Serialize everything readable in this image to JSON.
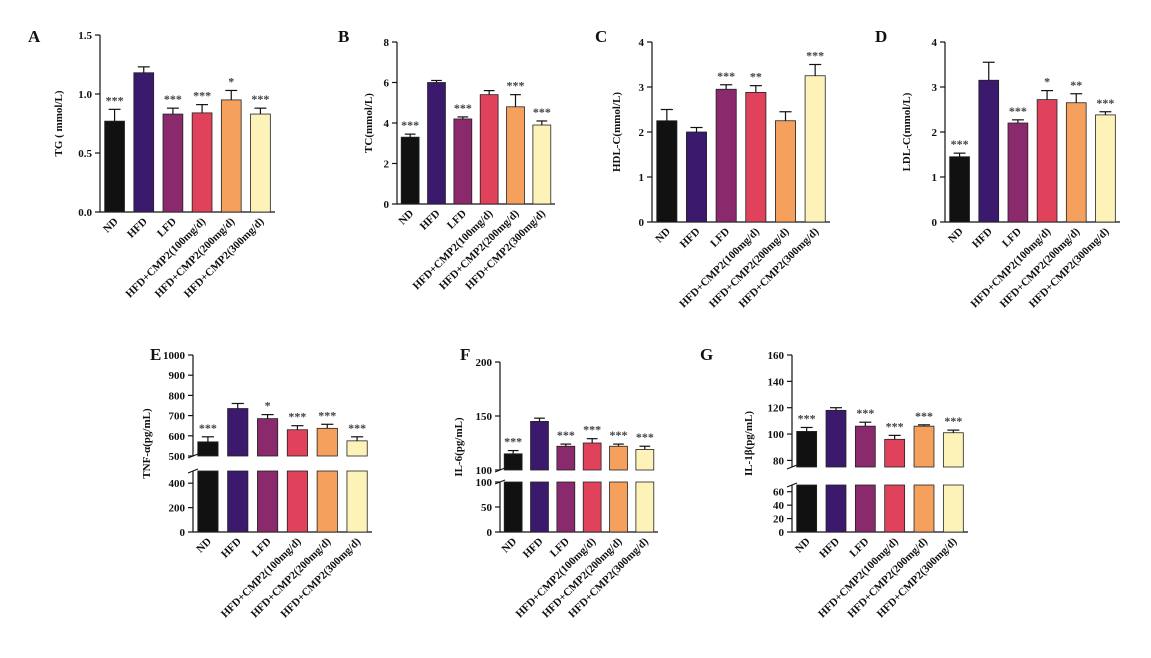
{
  "chart_data": [
    {
      "type": "bar",
      "panel_label": "A",
      "y_label": "TG ( mmol/L)",
      "categories": [
        "ND",
        "HFD",
        "LFD",
        "HFD+CMP2(100mg/d)",
        "HFD+CMP2(200mg/d)",
        "HFD+CMP2(300mg/d)"
      ],
      "colors": [
        "#111111",
        "#3b1a6e",
        "#8a2a6c",
        "#e0425c",
        "#f6a05e",
        "#fdf3b8"
      ],
      "values": [
        0.77,
        1.18,
        0.83,
        0.84,
        0.95,
        0.83
      ],
      "errors": [
        0.1,
        0.05,
        0.05,
        0.07,
        0.08,
        0.05
      ],
      "annotations": [
        "***",
        null,
        "***",
        "***",
        "*",
        "***"
      ],
      "ylim": [
        0,
        1.5
      ],
      "yticks": [
        {
          "value": 0,
          "label": "0.0"
        },
        0.5,
        {
          "value": 1,
          "label": "1.0"
        },
        1.5
      ]
    },
    {
      "type": "bar",
      "panel_label": "B",
      "y_label": "TC(mmol/L)",
      "categories": [
        "ND",
        "HFD",
        "LFD",
        "HFD+CMP2(100mg/d)",
        "HFD+CMP2(200mg/d)",
        "HFD+CMP2(300mg/d)"
      ],
      "colors": [
        "#111111",
        "#3b1a6e",
        "#8a2a6c",
        "#e0425c",
        "#f6a05e",
        "#fdf3b8"
      ],
      "values": [
        3.3,
        6.0,
        4.2,
        5.4,
        4.8,
        3.9
      ],
      "errors": [
        0.15,
        0.1,
        0.1,
        0.2,
        0.6,
        0.2
      ],
      "annotations": [
        "***",
        null,
        "***",
        null,
        "***",
        "***"
      ],
      "ylim": [
        0,
        8
      ],
      "yticks": [
        0,
        2,
        4,
        6,
        8
      ]
    },
    {
      "type": "bar",
      "panel_label": "C",
      "y_label": "HDL-C(mmol/L)",
      "categories": [
        "ND",
        "HFD",
        "LFD",
        "HFD+CMP2(100mg/d)",
        "HFD+CMP2(200mg/d)",
        "HFD+CMP2(300mg/d)"
      ],
      "colors": [
        "#111111",
        "#3b1a6e",
        "#8a2a6c",
        "#e0425c",
        "#f6a05e",
        "#fdf3b8"
      ],
      "values": [
        2.25,
        2.0,
        2.95,
        2.88,
        2.25,
        3.25
      ],
      "errors": [
        0.25,
        0.1,
        0.1,
        0.15,
        0.2,
        0.25
      ],
      "annotations": [
        null,
        null,
        "***",
        "**",
        null,
        "***"
      ],
      "ylim": [
        0,
        4
      ],
      "yticks": [
        0,
        1,
        2,
        3,
        4
      ]
    },
    {
      "type": "bar",
      "panel_label": "D",
      "y_label": "LDL-C(mmol/L)",
      "categories": [
        "ND",
        "HFD",
        "LFD",
        "HFD+CMP2(100mg/d)",
        "HFD+CMP2(200mg/d)",
        "HFD+CMP2(300mg/d)"
      ],
      "colors": [
        "#111111",
        "#3b1a6e",
        "#8a2a6c",
        "#e0425c",
        "#f6a05e",
        "#fdf3b8"
      ],
      "values": [
        1.45,
        3.15,
        2.2,
        2.72,
        2.65,
        2.38
      ],
      "errors": [
        0.08,
        0.4,
        0.07,
        0.2,
        0.2,
        0.07
      ],
      "annotations": [
        "***",
        null,
        "***",
        "*",
        "**",
        "***"
      ],
      "ylim": [
        0,
        4
      ],
      "yticks": [
        0,
        1,
        2,
        3,
        4
      ]
    },
    {
      "type": "bar",
      "panel_label": "E",
      "y_label": "TNF-α(pg/mL)",
      "categories": [
        "ND",
        "HFD",
        "LFD",
        "HFD+CMP2(100mg/d)",
        "HFD+CMP2(200mg/d)",
        "HFD+CMP2(300mg/d)"
      ],
      "colors": [
        "#111111",
        "#3b1a6e",
        "#8a2a6c",
        "#e0425c",
        "#f6a05e",
        "#fdf3b8"
      ],
      "values": [
        570,
        735,
        685,
        630,
        637,
        575
      ],
      "errors": [
        25,
        25,
        20,
        20,
        20,
        20
      ],
      "annotations": [
        "***",
        null,
        "*",
        "***",
        "***",
        "***"
      ],
      "axis_segments": [
        {
          "ylim": [
            0,
            500
          ],
          "yticks": [
            0,
            200,
            400
          ]
        },
        {
          "ylim": [
            500,
            1000
          ],
          "yticks": [
            500,
            600,
            700,
            800,
            900,
            1000
          ]
        }
      ]
    },
    {
      "type": "bar",
      "panel_label": "F",
      "y_label": "IL-6(pg/mL)",
      "categories": [
        "ND",
        "HFD",
        "LFD",
        "HFD+CMP2(100mg/d)",
        "HFD+CMP2(200mg/d)",
        "HFD+CMP2(300mg/d)"
      ],
      "colors": [
        "#111111",
        "#3b1a6e",
        "#8a2a6c",
        "#e0425c",
        "#f6a05e",
        "#fdf3b8"
      ],
      "values": [
        115,
        145,
        122,
        125,
        122,
        119
      ],
      "errors": [
        3,
        3,
        2,
        4,
        2,
        3
      ],
      "annotations": [
        "***",
        null,
        "***",
        "***",
        "***",
        "***"
      ],
      "axis_segments": [
        {
          "ylim": [
            0,
            100
          ],
          "yticks": [
            0,
            50,
            100
          ]
        },
        {
          "ylim": [
            100,
            200
          ],
          "yticks": [
            100,
            150,
            200
          ]
        }
      ]
    },
    {
      "type": "bar",
      "panel_label": "G",
      "y_label": "IL-1β(pg/mL)",
      "categories": [
        "ND",
        "HFD",
        "LFD",
        "HFD+CMP2(100mg/d)",
        "HFD+CMP2(200mg/d)",
        "HFD+CMP2(300mg/d)"
      ],
      "colors": [
        "#111111",
        "#3b1a6e",
        "#8a2a6c",
        "#e0425c",
        "#f6a05e",
        "#fdf3b8"
      ],
      "values": [
        102,
        118,
        106,
        96,
        106,
        101
      ],
      "errors": [
        3,
        2,
        3,
        3,
        1,
        2
      ],
      "annotations": [
        "***",
        null,
        "***",
        "***",
        "***",
        "***"
      ],
      "axis_segments": [
        {
          "ylim": [
            0,
            70
          ],
          "yticks": [
            0,
            20,
            40,
            60
          ]
        },
        {
          "ylim": [
            75,
            160
          ],
          "yticks": [
            80,
            100,
            120,
            140,
            160
          ]
        }
      ]
    }
  ]
}
